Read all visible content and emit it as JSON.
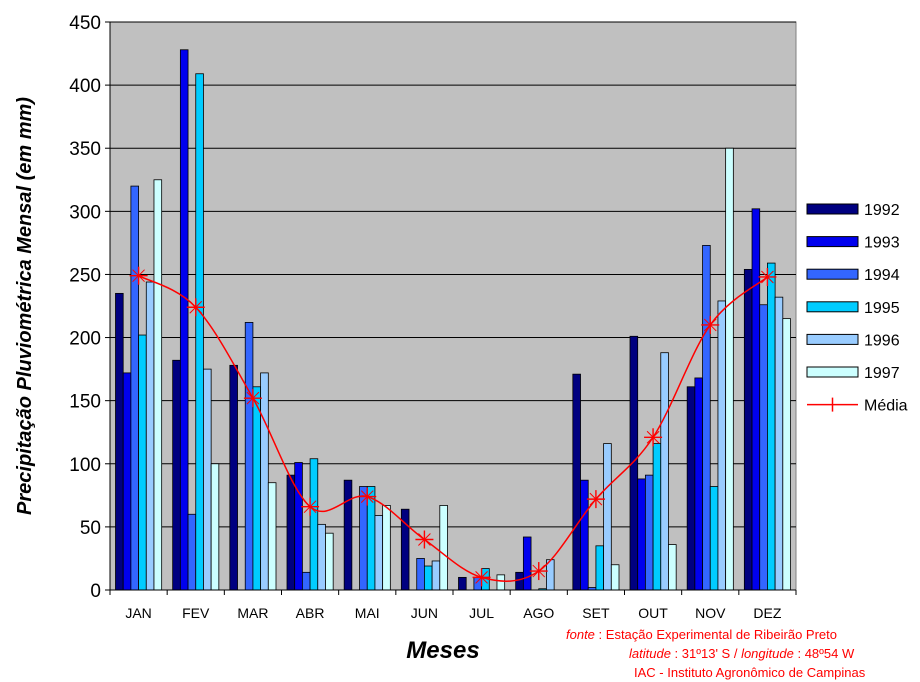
{
  "chart_data": {
    "type": "bar",
    "title": "",
    "xlabel": "Meses",
    "ylabel": "Precipitação Pluviométrica Mensal (em mm)",
    "ylim": [
      0,
      450
    ],
    "yticks": [
      0,
      50,
      100,
      150,
      200,
      250,
      300,
      350,
      400,
      450
    ],
    "grid": true,
    "legend_position": "right",
    "categories": [
      "JAN",
      "FEV",
      "MAR",
      "ABR",
      "MAI",
      "JUN",
      "JUL",
      "AGO",
      "SET",
      "OUT",
      "NOV",
      "DEZ"
    ],
    "series": [
      {
        "name": "1992",
        "type": "bar",
        "color": "#000080",
        "values": [
          235,
          182,
          178,
          91,
          87,
          64,
          10,
          14,
          171,
          201,
          161,
          254
        ]
      },
      {
        "name": "1993",
        "type": "bar",
        "color": "#0000ee",
        "values": [
          172,
          428,
          0,
          101,
          0,
          0,
          0,
          42,
          87,
          88,
          168,
          302
        ]
      },
      {
        "name": "1994",
        "type": "bar",
        "color": "#3366ff",
        "values": [
          320,
          60,
          212,
          14,
          82,
          25,
          10,
          0,
          2,
          91,
          273,
          226
        ]
      },
      {
        "name": "1995",
        "type": "bar",
        "color": "#00ccff",
        "values": [
          202,
          409,
          161,
          104,
          82,
          19,
          17,
          1,
          35,
          116,
          82,
          259
        ]
      },
      {
        "name": "1996",
        "type": "bar",
        "color": "#99ccff",
        "values": [
          244,
          175,
          172,
          52,
          59,
          23,
          0,
          24,
          116,
          188,
          229,
          232
        ]
      },
      {
        "name": "1997",
        "type": "bar",
        "color": "#ccffff",
        "values": [
          325,
          100,
          85,
          45,
          67,
          67,
          12,
          0,
          20,
          36,
          350,
          215
        ]
      },
      {
        "name": "Média",
        "type": "line",
        "color": "#ff0000",
        "values": [
          249,
          224,
          152,
          66,
          74,
          40,
          10,
          15,
          72,
          121,
          210,
          248
        ]
      }
    ]
  },
  "source": {
    "fonte_label": "fonte",
    "fonte_text": ": Estação Experimental de Ribeirão Preto",
    "latitude_label": "latitude",
    "latitude_text": ": 31º13' S /",
    "longitude_label": "longitude",
    "longitude_text": ": 48º54 W",
    "institution": "IAC - Instituto Agronômico de Campinas"
  }
}
